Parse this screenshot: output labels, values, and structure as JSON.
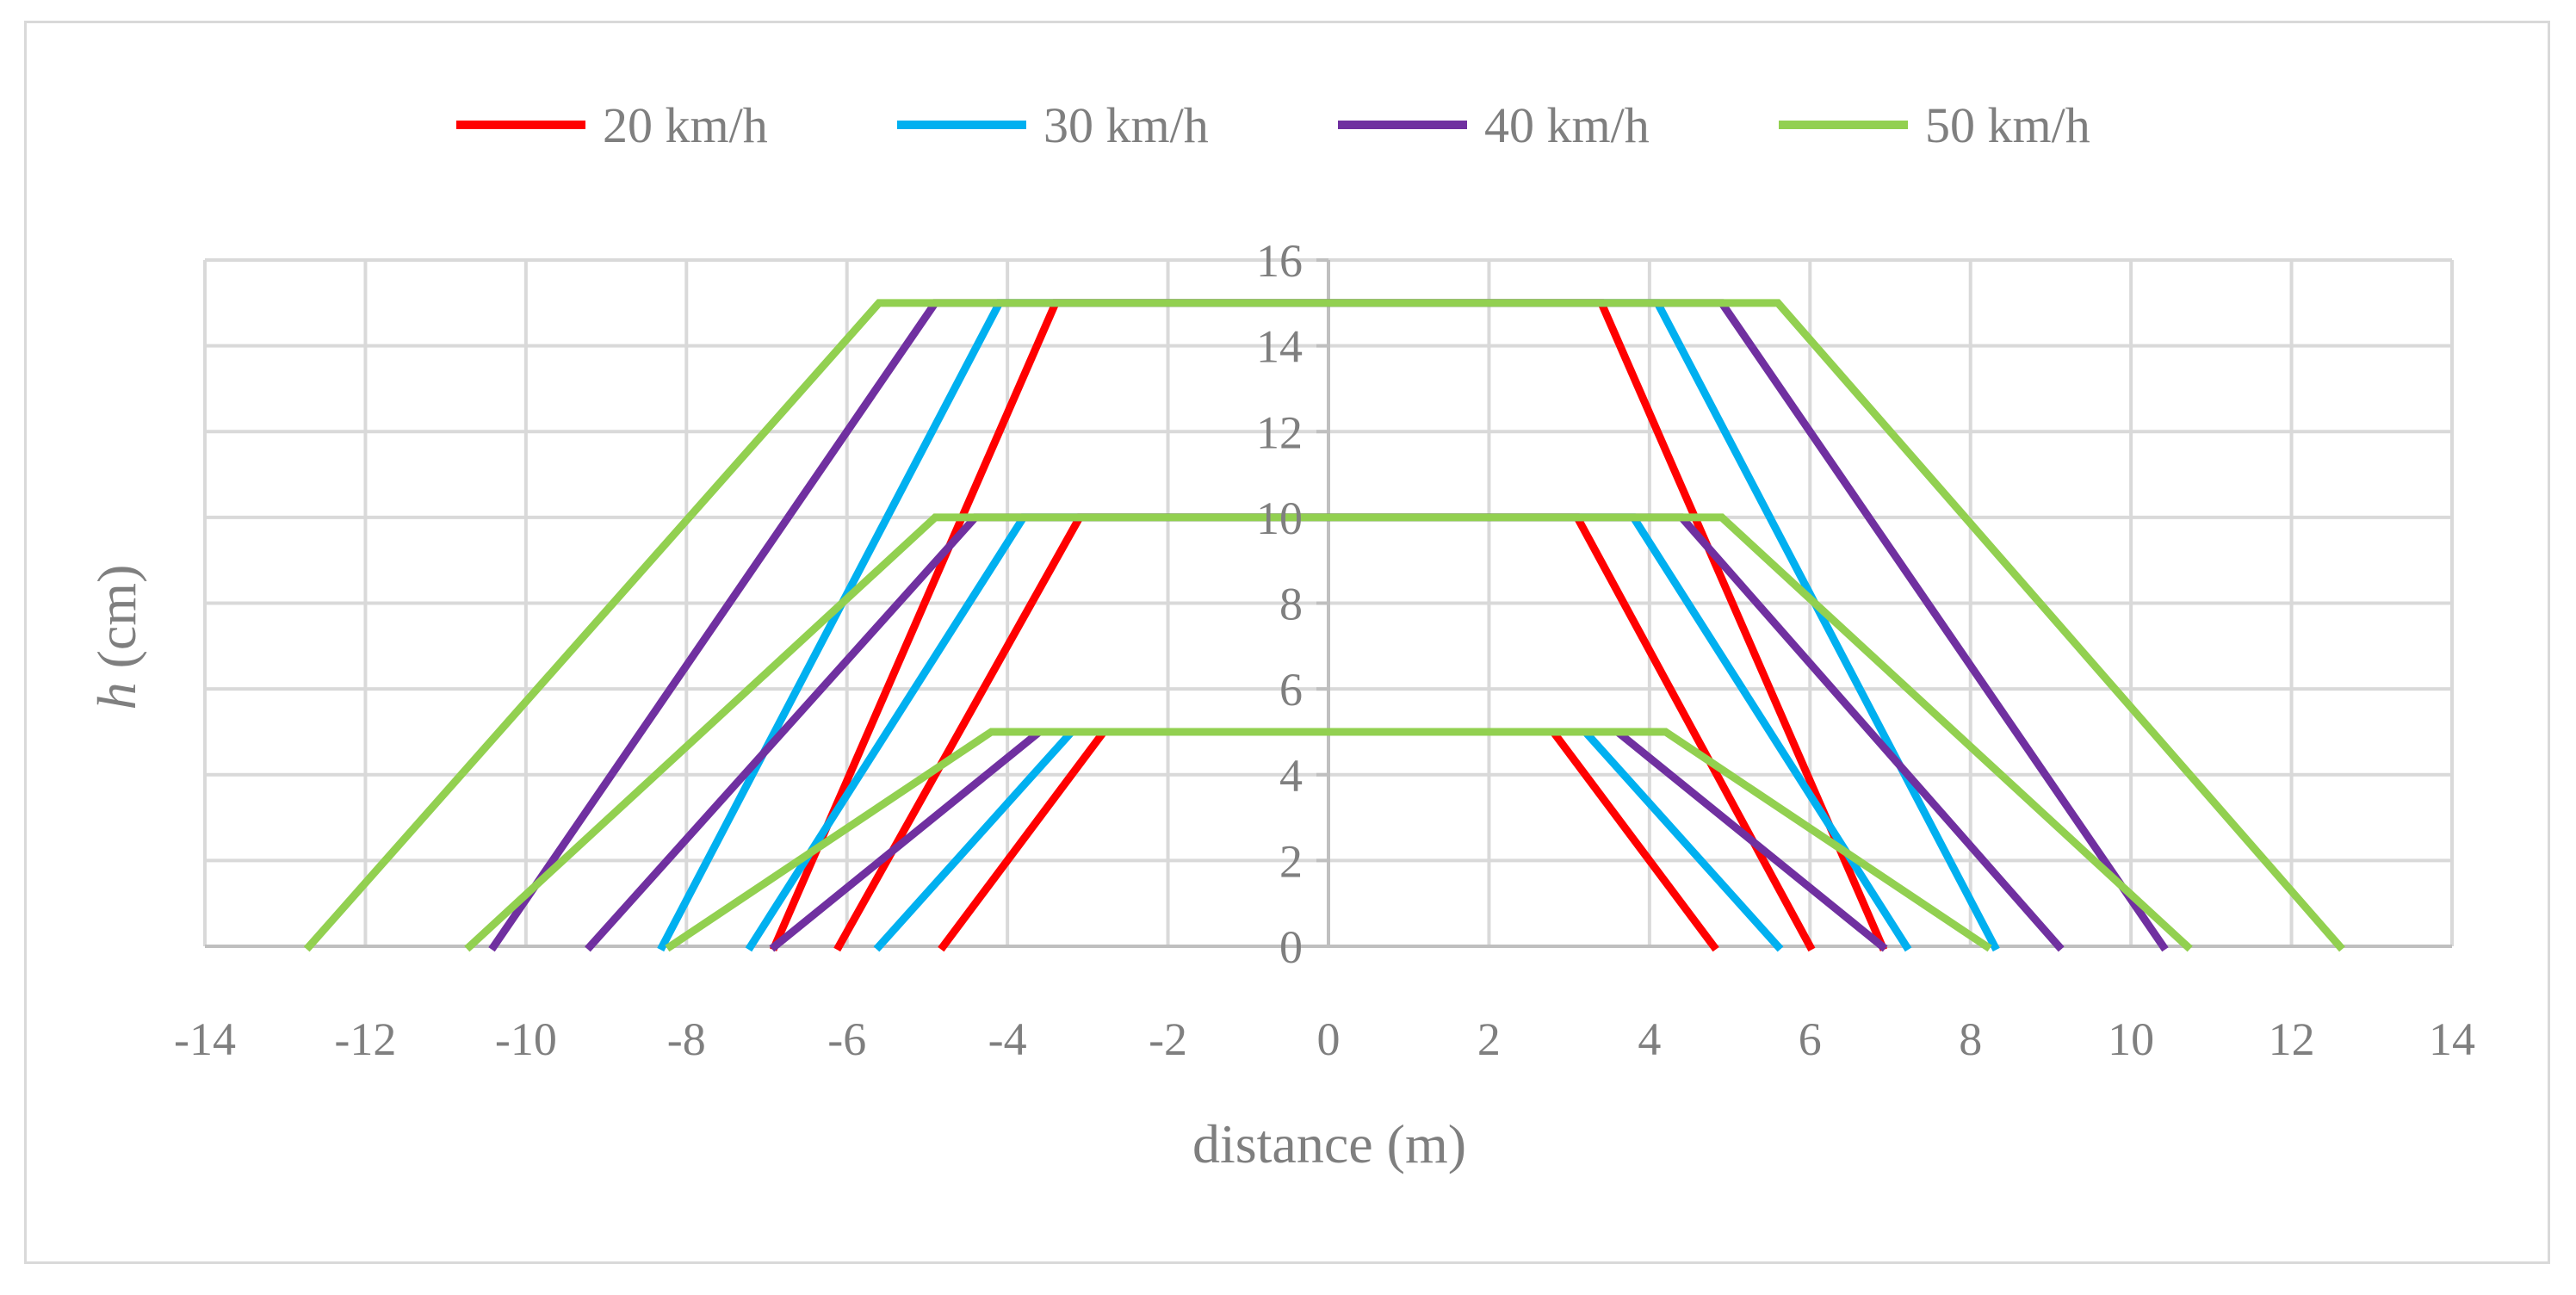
{
  "chart_data": {
    "type": "line",
    "title": "",
    "xlabel": "distance (m)",
    "ylabel_italic": "h",
    "ylabel_rest": " (cm)",
    "xlim": [
      -14,
      14
    ],
    "ylim": [
      0,
      16
    ],
    "x_ticks": [
      -14,
      -12,
      -10,
      -8,
      -6,
      -4,
      -2,
      0,
      2,
      4,
      6,
      8,
      10,
      12,
      14
    ],
    "y_ticks": [
      0,
      2,
      4,
      6,
      8,
      10,
      12,
      14,
      16
    ],
    "grid": true,
    "legend_position": "top",
    "series": [
      {
        "name": "20 km/h",
        "color": "#ff0000",
        "profiles": [
          [
            [
              -4.8,
              0
            ],
            [
              -2.8,
              5
            ],
            [
              2.8,
              5
            ],
            [
              4.8,
              0
            ]
          ],
          [
            [
              -6.1,
              0
            ],
            [
              -3.1,
              10
            ],
            [
              3.1,
              10
            ],
            [
              6.0,
              0
            ]
          ],
          [
            [
              -6.9,
              0
            ],
            [
              -3.4,
              15
            ],
            [
              3.4,
              15
            ],
            [
              6.9,
              0
            ]
          ]
        ]
      },
      {
        "name": "30 km/h",
        "color": "#00b0f0",
        "profiles": [
          [
            [
              -5.6,
              0
            ],
            [
              -3.2,
              5
            ],
            [
              3.2,
              5
            ],
            [
              5.6,
              0
            ]
          ],
          [
            [
              -7.2,
              0
            ],
            [
              -3.8,
              10
            ],
            [
              3.8,
              10
            ],
            [
              7.2,
              0
            ]
          ],
          [
            [
              -8.3,
              0
            ],
            [
              -4.1,
              15
            ],
            [
              4.1,
              15
            ],
            [
              8.3,
              0
            ]
          ]
        ]
      },
      {
        "name": "40 km/h",
        "color": "#7030a0",
        "profiles": [
          [
            [
              -6.9,
              0
            ],
            [
              -3.6,
              5
            ],
            [
              3.6,
              5
            ],
            [
              6.9,
              0
            ]
          ],
          [
            [
              -9.2,
              0
            ],
            [
              -4.4,
              10
            ],
            [
              4.4,
              10
            ],
            [
              9.1,
              0
            ]
          ],
          [
            [
              -10.4,
              0
            ],
            [
              -4.9,
              15
            ],
            [
              4.9,
              15
            ],
            [
              10.4,
              0
            ]
          ]
        ]
      },
      {
        "name": "50 km/h",
        "color": "#92d050",
        "profiles": [
          [
            [
              -8.2,
              0
            ],
            [
              -4.2,
              5
            ],
            [
              4.2,
              5
            ],
            [
              8.2,
              0
            ]
          ],
          [
            [
              -10.7,
              0
            ],
            [
              -4.9,
              10
            ],
            [
              4.9,
              10
            ],
            [
              10.7,
              0
            ]
          ],
          [
            [
              -12.7,
              0
            ],
            [
              -5.6,
              15
            ],
            [
              5.6,
              15
            ],
            [
              12.6,
              0
            ]
          ]
        ]
      }
    ]
  }
}
